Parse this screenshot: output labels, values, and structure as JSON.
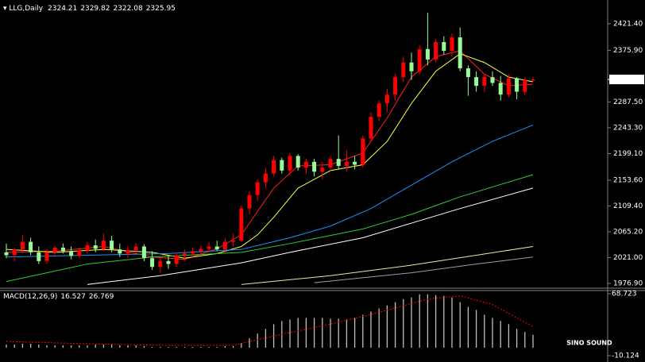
{
  "chart_data": [
    {
      "type": "candlestick",
      "title": "LLG,Daily",
      "bull_color": "#ff0000",
      "bear_color": "#98fb98",
      "ylim": [
        1970,
        2462
      ],
      "yticks": [
        {
          "value": 2421.4,
          "label": "2421.40"
        },
        {
          "value": 2375.9,
          "label": "2375.90"
        },
        {
          "value": 2287.5,
          "label": "2287.50"
        },
        {
          "value": 2243.3,
          "label": "2243.30"
        },
        {
          "value": 2199.1,
          "label": "2199.10"
        },
        {
          "value": 2153.6,
          "label": "2153.60"
        },
        {
          "value": 2109.4,
          "label": "2109.40"
        },
        {
          "value": 2065.2,
          "label": "2065.20"
        },
        {
          "value": 2021,
          "label": "2021.00"
        },
        {
          "value": 1976.9,
          "label": "1976.90"
        }
      ],
      "ohlc": [
        [
          2030,
          2045,
          2020,
          2025
        ],
        [
          2025,
          2038,
          2015,
          2035
        ],
        [
          2035,
          2060,
          2030,
          2048
        ],
        [
          2048,
          2055,
          2025,
          2030
        ],
        [
          2030,
          2040,
          2010,
          2015
        ],
        [
          2015,
          2035,
          2010,
          2030
        ],
        [
          2030,
          2042,
          2022,
          2038
        ],
        [
          2038,
          2045,
          2028,
          2032
        ],
        [
          2032,
          2040,
          2018,
          2024
        ],
        [
          2024,
          2036,
          2020,
          2033
        ],
        [
          2033,
          2048,
          2028,
          2042
        ],
        [
          2042,
          2052,
          2030,
          2036
        ],
        [
          2036,
          2062,
          2032,
          2050
        ],
        [
          2050,
          2058,
          2030,
          2035
        ],
        [
          2035,
          2045,
          2022,
          2028
        ],
        [
          2028,
          2040,
          2020,
          2034
        ],
        [
          2034,
          2046,
          2028,
          2040
        ],
        [
          2040,
          2044,
          2015,
          2020
        ],
        [
          2020,
          2032,
          2000,
          2005
        ],
        [
          2005,
          2022,
          1995,
          2015
        ],
        [
          2015,
          2025,
          2002,
          2010
        ],
        [
          2010,
          2030,
          2005,
          2025
        ],
        [
          2025,
          2035,
          2015,
          2028
        ],
        [
          2028,
          2038,
          2020,
          2032
        ],
        [
          2032,
          2042,
          2025,
          2036
        ],
        [
          2036,
          2048,
          2030,
          2040
        ],
        [
          2040,
          2050,
          2032,
          2035
        ],
        [
          2035,
          2055,
          2030,
          2048
        ],
        [
          2048,
          2062,
          2040,
          2050
        ],
        [
          2050,
          2110,
          2048,
          2105
        ],
        [
          2105,
          2135,
          2095,
          2128
        ],
        [
          2128,
          2155,
          2118,
          2150
        ],
        [
          2150,
          2175,
          2140,
          2165
        ],
        [
          2165,
          2195,
          2160,
          2188
        ],
        [
          2188,
          2192,
          2165,
          2170
        ],
        [
          2170,
          2200,
          2162,
          2195
        ],
        [
          2195,
          2198,
          2170,
          2175
        ],
        [
          2175,
          2190,
          2165,
          2185
        ],
        [
          2185,
          2190,
          2160,
          2168
        ],
        [
          2168,
          2185,
          2155,
          2175
        ],
        [
          2175,
          2195,
          2170,
          2190
        ],
        [
          2190,
          2230,
          2172,
          2178
        ],
        [
          2178,
          2205,
          2168,
          2185
        ],
        [
          2185,
          2195,
          2172,
          2180
        ],
        [
          2180,
          2230,
          2175,
          2225
        ],
        [
          2225,
          2270,
          2220,
          2262
        ],
        [
          2262,
          2290,
          2255,
          2285
        ],
        [
          2285,
          2310,
          2270,
          2300
        ],
        [
          2300,
          2335,
          2290,
          2330
        ],
        [
          2330,
          2365,
          2322,
          2355
        ],
        [
          2355,
          2372,
          2325,
          2340
        ],
        [
          2340,
          2385,
          2335,
          2378
        ],
        [
          2378,
          2440,
          2350,
          2360
        ],
        [
          2360,
          2395,
          2355,
          2390
        ],
        [
          2390,
          2400,
          2368,
          2375
        ],
        [
          2375,
          2405,
          2365,
          2398
        ],
        [
          2398,
          2415,
          2340,
          2345
        ],
        [
          2345,
          2350,
          2298,
          2330
        ],
        [
          2330,
          2340,
          2305,
          2315
        ],
        [
          2315,
          2335,
          2305,
          2330
        ],
        [
          2330,
          2340,
          2315,
          2320
        ],
        [
          2320,
          2332,
          2290,
          2300
        ],
        [
          2300,
          2335,
          2295,
          2328
        ],
        [
          2328,
          2330,
          2292,
          2305
        ],
        [
          2305,
          2330,
          2300,
          2325
        ],
        [
          2324.21,
          2329.82,
          2322.08,
          2325.95
        ]
      ],
      "lines": [
        {
          "color": "#ff2020",
          "x": [
            0,
            6,
            12,
            18,
            22,
            26,
            29,
            31,
            33,
            36,
            40,
            44,
            47,
            50,
            53,
            56,
            59,
            62,
            65
          ],
          "values": [
            2030,
            2032,
            2040,
            2022,
            2018,
            2036,
            2060,
            2100,
            2140,
            2178,
            2180,
            2200,
            2260,
            2330,
            2365,
            2375,
            2335,
            2315,
            2318
          ]
        },
        {
          "color": "#ffff40",
          "x": [
            0,
            6,
            12,
            18,
            22,
            26,
            29,
            31,
            33,
            36,
            40,
            44,
            47,
            50,
            53,
            56,
            59,
            62,
            65
          ],
          "values": [
            2035,
            2030,
            2035,
            2030,
            2020,
            2028,
            2040,
            2060,
            2090,
            2140,
            2170,
            2180,
            2220,
            2285,
            2340,
            2370,
            2355,
            2330,
            2322
          ]
        },
        {
          "color": "#1e90ff",
          "x": [
            0,
            10,
            20,
            29,
            35,
            40,
            45,
            50,
            55,
            60,
            65
          ],
          "values": [
            2022,
            2025,
            2028,
            2035,
            2055,
            2075,
            2105,
            2145,
            2185,
            2220,
            2248
          ]
        },
        {
          "color": "#32cd32",
          "x": [
            0,
            5,
            10,
            18,
            29,
            35,
            44,
            50,
            56,
            65
          ],
          "values": [
            1980,
            1995,
            2010,
            2022,
            2030,
            2045,
            2070,
            2095,
            2125,
            2163
          ]
        },
        {
          "color": "#ffffff",
          "x": [
            10,
            19,
            29,
            35,
            44,
            50,
            56,
            65
          ],
          "values": [
            1975,
            1990,
            2012,
            2030,
            2055,
            2080,
            2105,
            2140
          ]
        },
        {
          "color": "#eee8aa",
          "x": [
            29,
            40,
            50,
            58,
            65
          ],
          "values": [
            1975,
            1990,
            2008,
            2025,
            2040
          ]
        },
        {
          "color": "#a0a0a0",
          "x": [
            38,
            50,
            58,
            65
          ],
          "values": [
            1978,
            1995,
            2010,
            2022
          ]
        }
      ]
    },
    {
      "type": "macd",
      "title": "MACD(12,26,9)",
      "hist_color": "#c0c0c0",
      "ylim": [
        -18.2,
        72.8
      ],
      "yticks": [
        68.723,
        -10.124
      ],
      "histogram": [
        4,
        4,
        5,
        5,
        4,
        3,
        3,
        3,
        3,
        3,
        3,
        4,
        4,
        4,
        3,
        3,
        3,
        2,
        1,
        0,
        -1,
        -1,
        0,
        0,
        1,
        1,
        1,
        2,
        2,
        6,
        12,
        18,
        24,
        30,
        34,
        36,
        38,
        38,
        38,
        38,
        37,
        37,
        36,
        38,
        42,
        46,
        50,
        54,
        58,
        62,
        64,
        68,
        68,
        67,
        66,
        64,
        58,
        52,
        48,
        42,
        38,
        34,
        30,
        24,
        20,
        16.527
      ],
      "signal": {
        "color": "#ff0000",
        "x": [
          0,
          10,
          20,
          28,
          33,
          40,
          46,
          52,
          56,
          60,
          65
        ],
        "values": [
          8,
          5,
          3,
          3,
          15,
          30,
          45,
          62,
          66,
          55,
          26.769
        ]
      }
    }
  ],
  "watermark": "SINO SOUND"
}
